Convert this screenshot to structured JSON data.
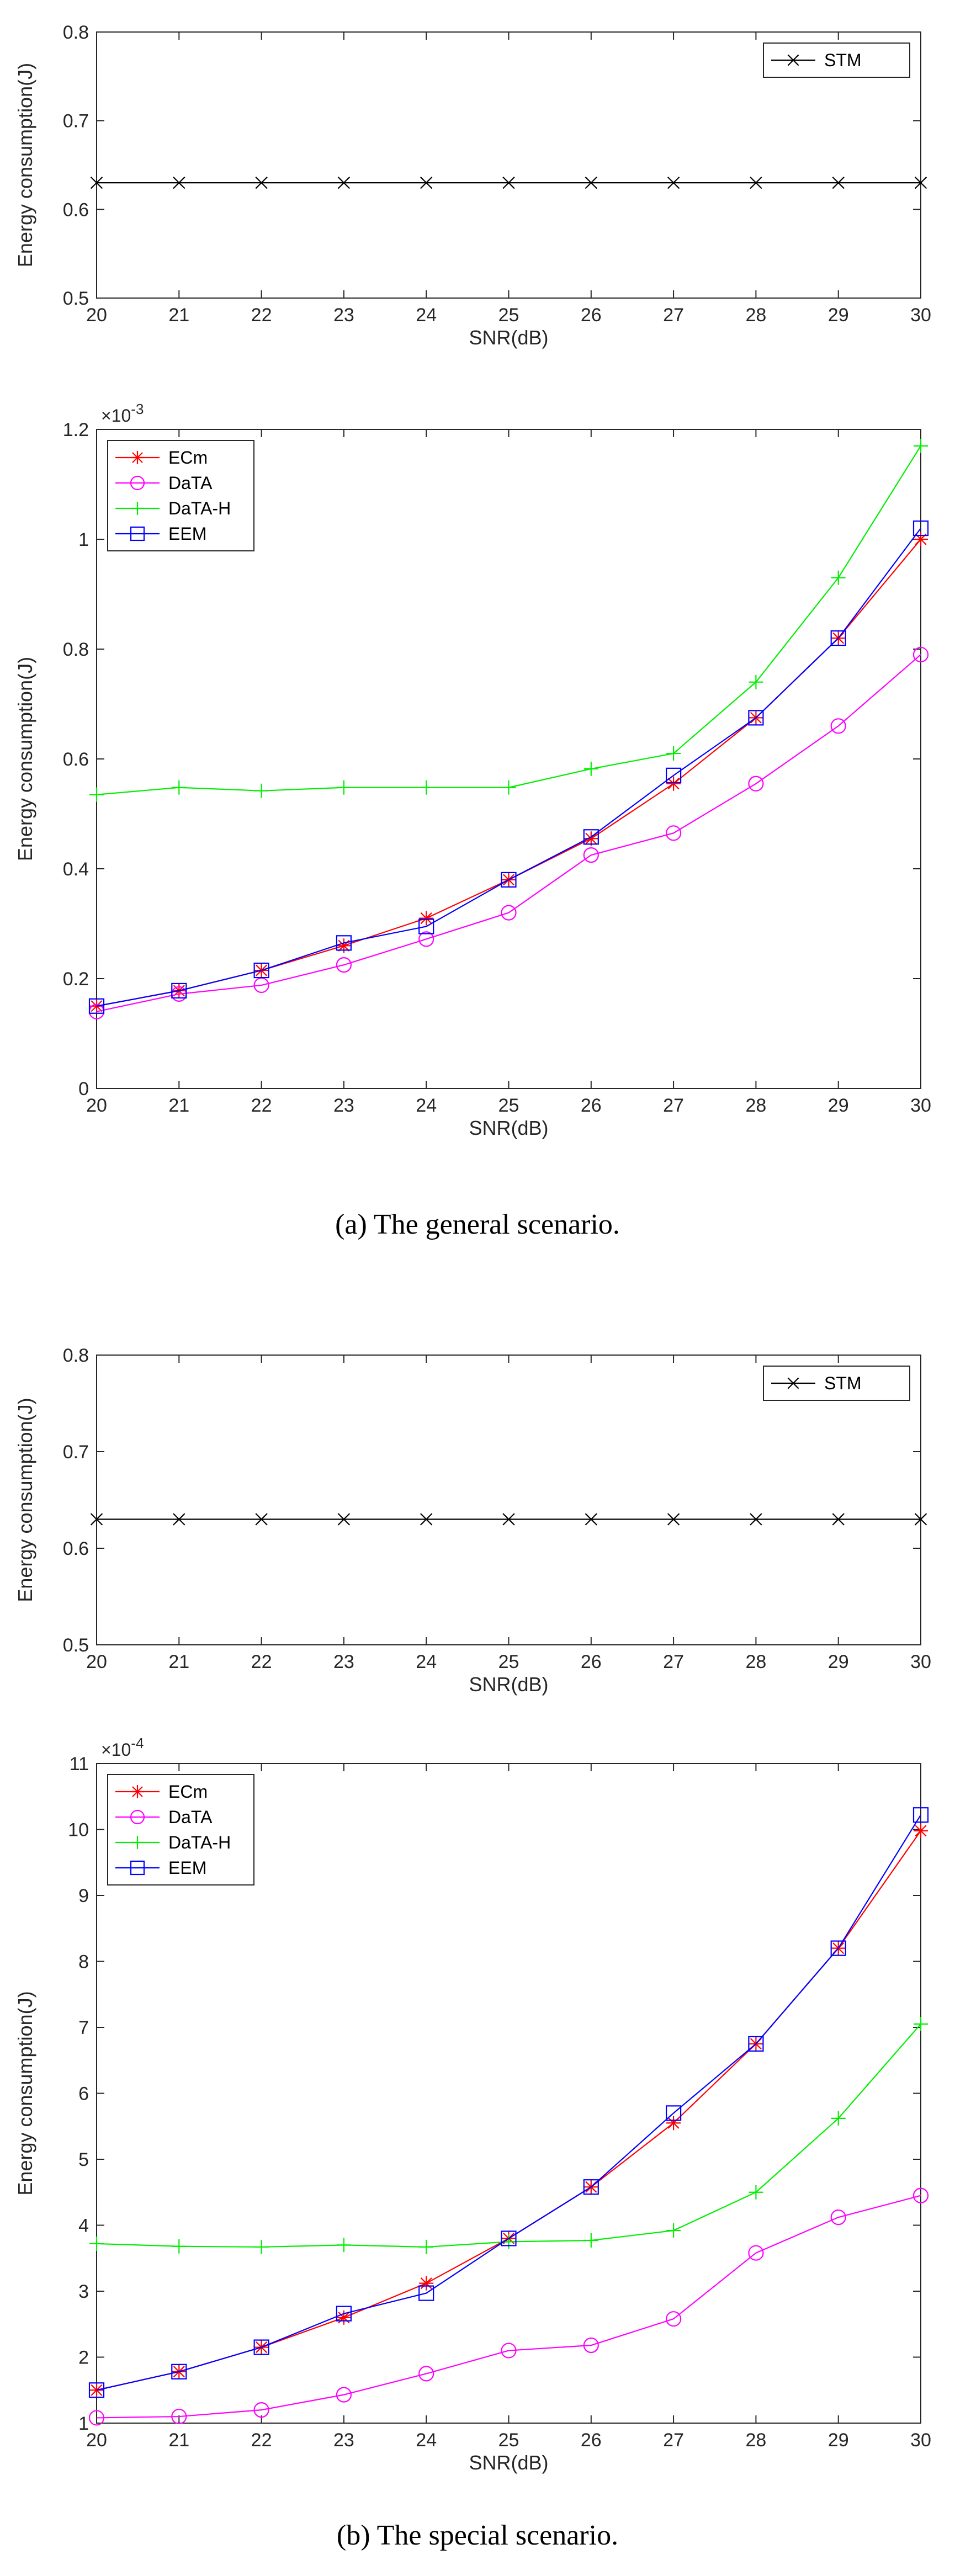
{
  "chart_data": [
    {
      "type": "line",
      "x": [
        20,
        21,
        22,
        23,
        24,
        25,
        26,
        27,
        28,
        29,
        30
      ],
      "xlabel": "SNR(dB)",
      "ylabel": "Energy consumption(J)",
      "xlim": [
        20,
        30
      ],
      "ylim": [
        0.5,
        0.8
      ],
      "xticks": [
        "20",
        "21",
        "22",
        "23",
        "24",
        "25",
        "26",
        "27",
        "28",
        "29",
        "30"
      ],
      "yticks": [
        "0.5",
        "0.6",
        "0.7",
        "0.8"
      ],
      "exponent": "",
      "legend_position": "top-right",
      "grid": false,
      "series": [
        {
          "name": "STM",
          "color": "#000000",
          "marker": "x",
          "values": [
            0.63,
            0.63,
            0.63,
            0.63,
            0.63,
            0.63,
            0.63,
            0.63,
            0.63,
            0.63,
            0.63
          ]
        }
      ]
    },
    {
      "type": "line",
      "x": [
        20,
        21,
        22,
        23,
        24,
        25,
        26,
        27,
        28,
        29,
        30
      ],
      "xlabel": "SNR(dB)",
      "ylabel": "Energy consumption(J)",
      "xlim": [
        20,
        30
      ],
      "ylim": [
        0,
        1.2
      ],
      "xticks": [
        "20",
        "21",
        "22",
        "23",
        "24",
        "25",
        "26",
        "27",
        "28",
        "29",
        "30"
      ],
      "yticks": [
        "0",
        "0.2",
        "0.4",
        "0.6",
        "0.8",
        "1",
        "1.2"
      ],
      "exponent": "×10",
      "exponent_power": "-3",
      "legend_position": "top-left",
      "grid": false,
      "series": [
        {
          "name": "ECm",
          "color": "#ff0000",
          "marker": "asterisk",
          "values": [
            0.15,
            0.178,
            0.215,
            0.26,
            0.31,
            0.38,
            0.455,
            0.555,
            0.675,
            0.82,
            1.0
          ]
        },
        {
          "name": "DaTA",
          "color": "#ff00ff",
          "marker": "circle",
          "values": [
            0.14,
            0.172,
            0.188,
            0.225,
            0.272,
            0.32,
            0.425,
            0.465,
            0.555,
            0.66,
            0.79
          ]
        },
        {
          "name": "DaTA-H",
          "color": "#00ee00",
          "marker": "plus",
          "values": [
            0.535,
            0.548,
            0.542,
            0.548,
            0.548,
            0.548,
            0.582,
            0.61,
            0.74,
            0.93,
            1.17
          ]
        },
        {
          "name": "EEM",
          "color": "#0000ff",
          "marker": "square",
          "values": [
            0.15,
            0.178,
            0.215,
            0.265,
            0.295,
            0.38,
            0.458,
            0.57,
            0.675,
            0.82,
            1.02
          ]
        }
      ]
    },
    {
      "type": "line",
      "x": [
        20,
        21,
        22,
        23,
        24,
        25,
        26,
        27,
        28,
        29,
        30
      ],
      "xlabel": "SNR(dB)",
      "ylabel": "Energy consumption(J)",
      "xlim": [
        20,
        30
      ],
      "ylim": [
        0.5,
        0.8
      ],
      "xticks": [
        "20",
        "21",
        "22",
        "23",
        "24",
        "25",
        "26",
        "27",
        "28",
        "29",
        "30"
      ],
      "yticks": [
        "0.5",
        "0.6",
        "0.7",
        "0.8"
      ],
      "exponent": "",
      "legend_position": "top-right",
      "grid": false,
      "series": [
        {
          "name": "STM",
          "color": "#000000",
          "marker": "x",
          "values": [
            0.63,
            0.63,
            0.63,
            0.63,
            0.63,
            0.63,
            0.63,
            0.63,
            0.63,
            0.63,
            0.63
          ]
        }
      ]
    },
    {
      "type": "line",
      "x": [
        20,
        21,
        22,
        23,
        24,
        25,
        26,
        27,
        28,
        29,
        30
      ],
      "xlabel": "SNR(dB)",
      "ylabel": "Energy consumption(J)",
      "xlim": [
        20,
        30
      ],
      "ylim": [
        1,
        11
      ],
      "xticks": [
        "20",
        "21",
        "22",
        "23",
        "24",
        "25",
        "26",
        "27",
        "28",
        "29",
        "30"
      ],
      "yticks": [
        "1",
        "2",
        "3",
        "4",
        "5",
        "6",
        "7",
        "8",
        "9",
        "10",
        "11"
      ],
      "exponent": "×10",
      "exponent_power": "-4",
      "legend_position": "top-left",
      "grid": false,
      "series": [
        {
          "name": "ECm",
          "color": "#ff0000",
          "marker": "asterisk",
          "values": [
            1.5,
            1.78,
            2.15,
            2.6,
            3.12,
            3.8,
            4.58,
            5.55,
            6.75,
            8.2,
            9.98
          ]
        },
        {
          "name": "DaTA",
          "color": "#ff00ff",
          "marker": "circle",
          "values": [
            1.08,
            1.1,
            1.2,
            1.43,
            1.75,
            2.1,
            2.18,
            2.58,
            3.58,
            4.12,
            4.45
          ]
        },
        {
          "name": "DaTA-H",
          "color": "#00ee00",
          "marker": "plus",
          "values": [
            3.72,
            3.68,
            3.67,
            3.7,
            3.67,
            3.75,
            3.77,
            3.92,
            4.5,
            5.62,
            7.05
          ]
        },
        {
          "name": "EEM",
          "color": "#0000ff",
          "marker": "square",
          "values": [
            1.5,
            1.78,
            2.15,
            2.66,
            2.97,
            3.8,
            4.58,
            5.7,
            6.75,
            8.2,
            10.22
          ]
        }
      ]
    }
  ],
  "captions": [
    "(a)  The general scenario.",
    "(b)  The special scenario."
  ]
}
